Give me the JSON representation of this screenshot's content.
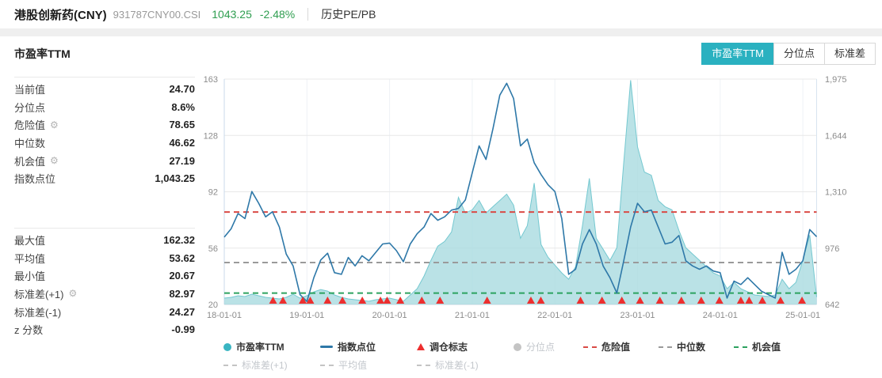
{
  "header": {
    "title": "港股创新药(CNY)",
    "code": "931787CNY00.CSI",
    "price": "1043.25",
    "change": "-2.48%",
    "menu": "历史PE/PB",
    "price_color": "#2f9e50"
  },
  "panel": {
    "title": "市盈率TTM",
    "tabs": [
      {
        "label": "市盈率TTM",
        "active": true
      },
      {
        "label": "分位点",
        "active": false
      },
      {
        "label": "标准差",
        "active": false
      }
    ],
    "active_tab_color": "#2ab1c0",
    "stats_top": [
      {
        "label": "当前值",
        "value": "24.70"
      },
      {
        "label": "分位点",
        "value": "8.6%"
      },
      {
        "label": "危险值",
        "value": "78.65",
        "gear": true
      },
      {
        "label": "中位数",
        "value": "46.62"
      },
      {
        "label": "机会值",
        "value": "27.19",
        "gear": true
      },
      {
        "label": "指数点位",
        "value": "1,043.25"
      }
    ],
    "stats_bottom": [
      {
        "label": "最大值",
        "value": "162.32"
      },
      {
        "label": "平均值",
        "value": "53.62"
      },
      {
        "label": "最小值",
        "value": "20.67"
      },
      {
        "label": "标准差(+1)",
        "value": "82.97",
        "gear": true
      },
      {
        "label": "标准差(-1)",
        "value": "24.27"
      },
      {
        "label": "z 分数",
        "value": "-0.99"
      }
    ]
  },
  "legend": {
    "row1": [
      {
        "label": "市盈率TTM",
        "swatch": "circle",
        "color": "#3ab5c2",
        "enabled": true
      },
      {
        "label": "指数点位",
        "swatch": "line",
        "color": "#2e78a8",
        "enabled": true
      },
      {
        "label": "调仓标志",
        "swatch": "triangle",
        "color": "#ed2f2f",
        "enabled": true
      },
      {
        "label": "分位点",
        "swatch": "circle",
        "color": "#c4c4c4",
        "enabled": false
      },
      {
        "label": "危险值",
        "swatch": "dash",
        "color": "#d94a45",
        "enabled": true
      },
      {
        "label": "中位数",
        "swatch": "dash",
        "color": "#9a9a9a",
        "enabled": true
      },
      {
        "label": "机会值",
        "swatch": "dash",
        "color": "#2ca25f",
        "enabled": true
      }
    ],
    "row2": [
      {
        "label": "标准差(+1)",
        "swatch": "dash",
        "color": "#c4c4c4",
        "enabled": false
      },
      {
        "label": "平均值",
        "swatch": "dash",
        "color": "#c4c4c4",
        "enabled": false
      },
      {
        "label": "标准差(-1)",
        "swatch": "dash",
        "color": "#c4c4c4",
        "enabled": false
      }
    ]
  },
  "chart_data": {
    "type": "area+line",
    "x_start_year": 2018,
    "x_months": 87,
    "x_ticks": [
      "18-01-01",
      "19-01-01",
      "20-01-01",
      "21-01-01",
      "22-01-01",
      "23-01-01",
      "24-01-01",
      "25-01-01"
    ],
    "y_left": {
      "min": 20,
      "max": 163,
      "ticks": [
        "20",
        "56",
        "92",
        "128",
        "163"
      ]
    },
    "y_right": {
      "min": 642,
      "max": 1975,
      "ticks": [
        "642",
        "976",
        "1,310",
        "1,644",
        "1,975"
      ]
    },
    "series": [
      {
        "name": "市盈率TTM",
        "axis": "left",
        "type": "area",
        "color": "#74c8d0",
        "fill": "#a9dbe0",
        "values": [
          24.0,
          24.5,
          25.5,
          25.0,
          26.5,
          25.5,
          24.5,
          24.0,
          23.5,
          24.5,
          26.5,
          24.0,
          25.5,
          28.0,
          29.5,
          28.5,
          26.0,
          24.5,
          23.5,
          23.0,
          22.5,
          22.0,
          23.0,
          23.5,
          24.0,
          23.0,
          22.0,
          26.0,
          30.0,
          38.0,
          48.0,
          57.0,
          60.0,
          66.0,
          88.0,
          78.0,
          80.0,
          86.0,
          78.0,
          82.0,
          86.0,
          90.0,
          83.0,
          62.0,
          70.0,
          97.0,
          58.0,
          50.0,
          45.0,
          40.0,
          36.0,
          44.0,
          70.0,
          100.0,
          62.0,
          55.0,
          48.0,
          56.0,
          110.0,
          162.3,
          120.0,
          104.0,
          102.0,
          86.0,
          82.0,
          80.0,
          67.0,
          56.0,
          52.0,
          48.0,
          44.0,
          40.0,
          38.0,
          30.0,
          34.0,
          30.0,
          28.0,
          26.0,
          25.5,
          25.0,
          26.0,
          36.0,
          30.0,
          34.0,
          48.0,
          64.0,
          24.7
        ]
      },
      {
        "name": "指数点位",
        "axis": "right",
        "type": "line",
        "color": "#2e78a8",
        "values": [
          1040,
          1090,
          1180,
          1150,
          1310,
          1240,
          1160,
          1190,
          1100,
          940,
          870,
          700,
          660,
          800,
          905,
          945,
          830,
          820,
          920,
          870,
          930,
          900,
          950,
          1000,
          1005,
          960,
          895,
          1000,
          1060,
          1100,
          1180,
          1140,
          1160,
          1200,
          1210,
          1260,
          1420,
          1580,
          1500,
          1680,
          1880,
          1950,
          1860,
          1580,
          1620,
          1480,
          1410,
          1350,
          1310,
          1150,
          820,
          850,
          1000,
          1085,
          1000,
          870,
          800,
          710,
          900,
          1100,
          1240,
          1190,
          1200,
          1100,
          1000,
          1010,
          1050,
          900,
          870,
          850,
          870,
          840,
          830,
          680,
          780,
          760,
          800,
          760,
          720,
          700,
          680,
          950,
          820,
          850,
          900,
          1085,
          1043
        ]
      }
    ],
    "ref_lines": [
      {
        "name": "危险值",
        "value": 78.65,
        "color": "#d94a45"
      },
      {
        "name": "中位数",
        "value": 46.62,
        "color": "#9a9a9a"
      },
      {
        "name": "机会值",
        "value": 27.19,
        "color": "#2ca25f"
      }
    ],
    "markers": {
      "name": "调仓标志",
      "color": "#ed2f2f",
      "x_years": [
        2018.59,
        2018.71,
        2018.95,
        2019.04,
        2019.25,
        2019.43,
        2019.67,
        2019.89,
        2019.97,
        2020.13,
        2020.39,
        2020.61,
        2021.18,
        2021.71,
        2021.83,
        2022.31,
        2022.57,
        2022.81,
        2023.03,
        2023.27,
        2023.53,
        2023.77,
        2023.99,
        2024.25,
        2024.35,
        2024.51,
        2024.73,
        2024.99
      ]
    },
    "grid": true,
    "legend_position": "bottom"
  }
}
